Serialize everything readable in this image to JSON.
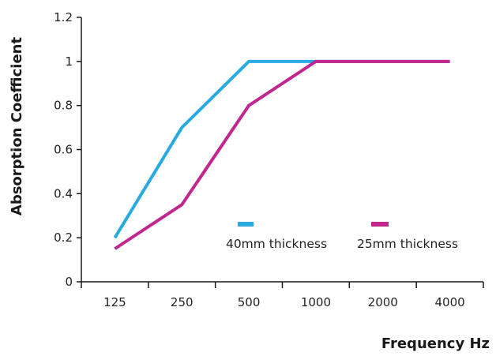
{
  "chart_data": {
    "type": "line",
    "categories": [
      "125",
      "250",
      "500",
      "1000",
      "2000",
      "4000"
    ],
    "yticks": [
      "0",
      "0.2",
      "0.4",
      "0.6",
      "0.8",
      "1",
      "1.2"
    ],
    "ylim": [
      0,
      1.2
    ],
    "ylabel": "Absorption Coefficient",
    "xlabel": "Frequency Hz",
    "grid": false,
    "legend_position": "inside-bottom-right",
    "series": [
      {
        "name": "40mm thickness",
        "color": "#29ABE2",
        "values": [
          0.2,
          0.7,
          1.0,
          1.0,
          1.0,
          1.0
        ]
      },
      {
        "name": "25mm thickness",
        "color": "#C1278F",
        "values": [
          0.15,
          0.35,
          0.8,
          1.0,
          1.0,
          1.0
        ]
      }
    ]
  }
}
